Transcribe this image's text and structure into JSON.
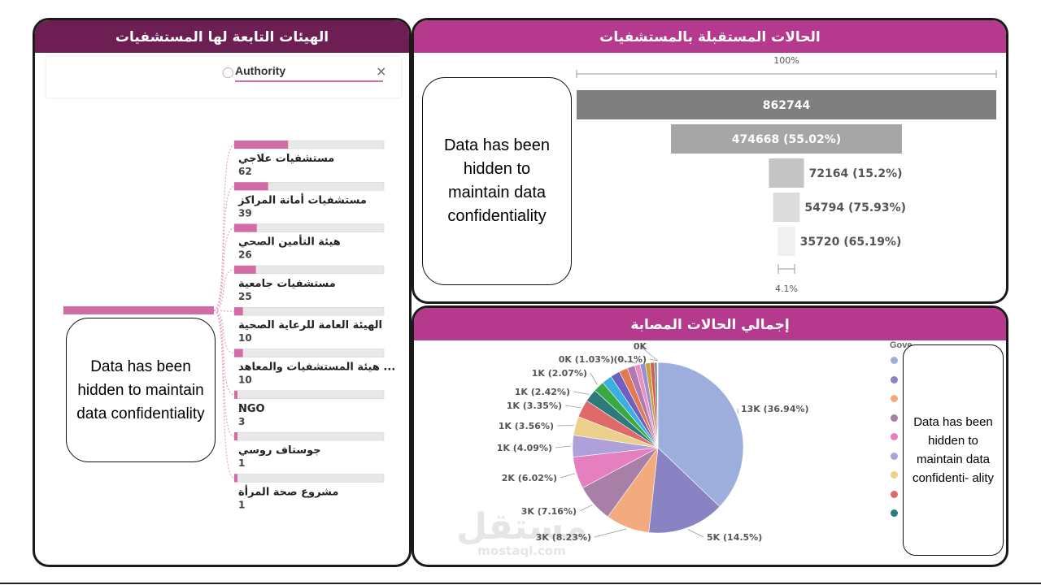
{
  "left_panel": {
    "title": "الهيئات التابعة لها المستشفيات",
    "filter_label": "Authority",
    "close_symbol": "×",
    "note": "Data has been hidden to maintain data confidentiality",
    "tree_items": [
      {
        "label": "مستشفيات علاجي",
        "value": "62",
        "count": 62
      },
      {
        "label": "مستشفيات أمانة المراكز",
        "value": "39",
        "count": 39
      },
      {
        "label": "هيئة التأمين الصحي",
        "value": "26",
        "count": 26
      },
      {
        "label": "مستشفيات جامعية",
        "value": "25",
        "count": 25
      },
      {
        "label": "الهيئة العامة للرعاية الصحية",
        "value": "10",
        "count": 10
      },
      {
        "label": "هيئة المستشفيات والمعاهد ...",
        "value": "10",
        "count": 10
      },
      {
        "label": "NGO",
        "value": "3",
        "count": 3
      },
      {
        "label": "جوستاف روسي",
        "value": "1",
        "count": 1
      },
      {
        "label": "مشروع صحة المرأة",
        "value": "1",
        "count": 1
      }
    ]
  },
  "funnel_panel": {
    "title": "الحالات المستقبلة بالمستشفيات",
    "top_label": "100%",
    "bottom_label": "4.1%",
    "note": "Data has been hidden to maintain data confidentiality",
    "colors": [
      "#7f7f7f",
      "#a6a6a6",
      "#c4c4c4",
      "#dcdcdc",
      "#f0f0f0"
    ]
  },
  "pie_panel": {
    "title": "إجمالي الحالات المصابة",
    "legend_title": "Gove",
    "note": "Data has been hidden to maintain data confidenti- ality",
    "watermark_ar": "مستقل",
    "watermark_en": "mostaql.com"
  },
  "chart_data": [
    {
      "type": "funnel",
      "values": [
        862744,
        474668,
        72164,
        54794,
        35720
      ],
      "labels": [
        "862744",
        "474668 (55.02%)",
        "72164 (15.2%)",
        "54794 (75.93%)",
        "35720 (65.19%)"
      ]
    },
    {
      "type": "pie",
      "slices": [
        {
          "label": "13K (36.94%)",
          "percent": 36.94,
          "color": "#9daedc"
        },
        {
          "label": "5K (14.5%)",
          "percent": 14.5,
          "color": "#8a83c3"
        },
        {
          "label": "3K (8.23%)",
          "percent": 8.23,
          "color": "#f2aa7e"
        },
        {
          "label": "3K (7.16%)",
          "percent": 7.16,
          "color": "#a77fa7"
        },
        {
          "label": "2K (6.02%)",
          "percent": 6.02,
          "color": "#e57fbf"
        },
        {
          "label": "1K (4.09%)",
          "percent": 4.09,
          "color": "#aea0d8"
        },
        {
          "label": "1K (3.56%)",
          "percent": 3.56,
          "color": "#ead08a"
        },
        {
          "label": "1K (3.35%)",
          "percent": 3.35,
          "color": "#e06a6a"
        },
        {
          "label": "1K (2.42%)",
          "percent": 2.42,
          "color": "#2e7a7a"
        },
        {
          "label": "1K (2.07%)",
          "percent": 2.07,
          "color": "#3aa845"
        },
        {
          "label": "",
          "percent": 1.9,
          "color": "#3ab0e0"
        },
        {
          "label": "",
          "percent": 1.8,
          "color": "#6f5fbf"
        },
        {
          "label": "",
          "percent": 1.6,
          "color": "#e07a50"
        },
        {
          "label": "",
          "percent": 1.45,
          "color": "#b07ab0"
        },
        {
          "label": "0K (1.03%)",
          "percent": 1.03,
          "color": "#e890c0"
        },
        {
          "label": "",
          "percent": 1.0,
          "color": "#9a90d0"
        },
        {
          "label": "",
          "percent": 0.9,
          "color": "#c8a040"
        },
        {
          "label": "",
          "percent": 0.8,
          "color": "#d06050"
        },
        {
          "label": "",
          "percent": 0.5,
          "color": "#7a8aa0"
        },
        {
          "label": "(0.1%)",
          "percent": 0.1,
          "color": "#5aa060"
        },
        {
          "label": "0K",
          "percent": 0.05,
          "color": "#7fc7a0"
        }
      ]
    }
  ]
}
